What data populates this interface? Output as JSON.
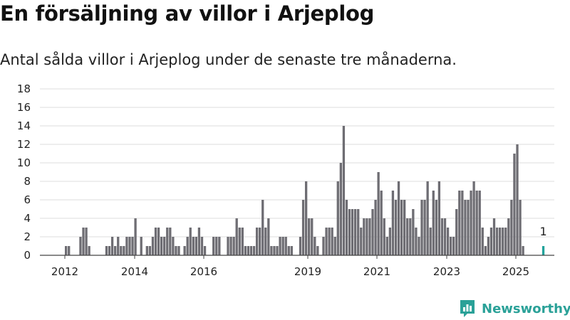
{
  "title": "En försäljning av villor i Arjeplog",
  "subtitle": "Antal sålda villor i Arjeplog under de senaste tre månaderna.",
  "brand": {
    "name": "Newsworthy",
    "color": "#2aa198"
  },
  "colors": {
    "bar": "#6e6d73",
    "highlight": "#22a39b",
    "grid": "#dddddd",
    "axis": "#444444"
  },
  "chart_data": {
    "type": "bar",
    "x_ticks": [
      "2012",
      "2014",
      "2016",
      "2019",
      "2021",
      "2023",
      "2025"
    ],
    "ylim": [
      0,
      18
    ],
    "y_ticks": [
      0,
      2,
      4,
      6,
      8,
      10,
      12,
      14,
      16,
      18
    ],
    "grid": true,
    "series": [
      {
        "values": [
          1,
          1,
          0,
          0,
          0,
          2,
          3,
          3,
          1,
          0,
          0,
          0,
          0,
          0,
          1,
          1,
          2,
          1,
          2,
          1,
          1,
          2,
          2,
          2,
          4,
          0,
          2,
          0,
          1,
          1,
          2,
          3,
          3,
          2,
          2,
          3,
          3,
          2,
          1,
          1,
          0,
          1,
          2,
          3,
          2,
          2,
          3,
          2,
          1,
          0,
          0,
          2,
          2,
          2,
          0,
          0,
          2,
          2,
          2,
          4,
          3,
          3,
          1,
          1,
          1,
          1,
          3,
          3,
          6,
          3,
          4,
          1,
          1,
          1,
          2,
          2,
          2,
          1,
          1,
          0,
          0,
          2,
          6,
          8,
          4,
          4,
          2,
          1,
          0,
          2,
          3,
          3,
          3,
          2,
          8,
          10,
          14,
          6,
          5,
          5,
          5,
          5,
          3,
          4,
          4,
          4,
          5,
          6,
          9,
          7,
          4,
          2,
          3,
          7,
          6,
          8,
          6,
          6,
          4,
          4,
          5,
          3,
          2,
          6,
          6,
          8,
          3,
          7,
          6,
          8,
          4,
          4,
          3,
          2,
          2,
          5,
          7,
          7,
          6,
          6,
          7,
          8,
          7,
          7,
          3,
          1,
          2,
          3,
          4,
          3,
          3,
          3,
          3,
          4,
          6,
          11,
          12,
          6,
          1,
          0,
          0,
          0,
          0,
          0,
          0
        ]
      },
      {
        "values": [
          1
        ],
        "label": "1"
      }
    ]
  }
}
